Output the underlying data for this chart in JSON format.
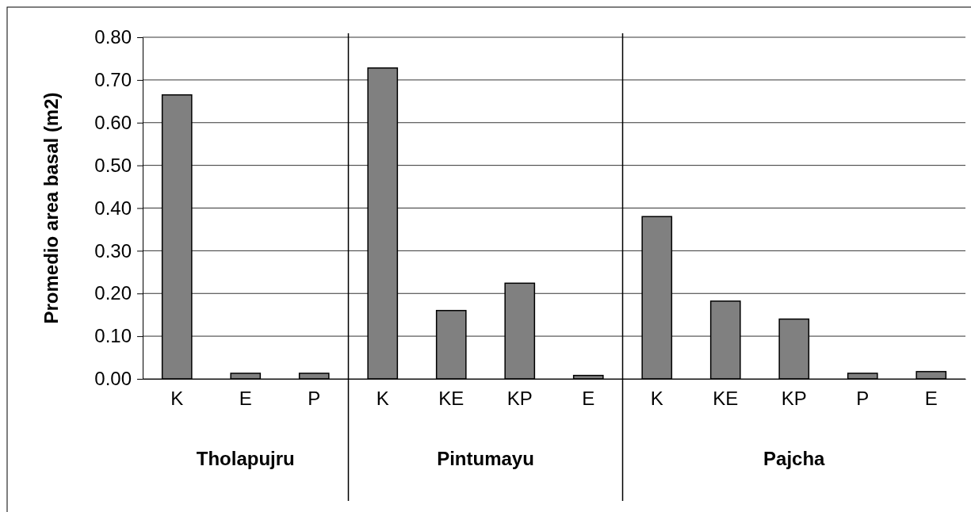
{
  "chart_data": {
    "type": "bar",
    "ylabel": "Promedio area basal (m2)",
    "categories": [
      "K",
      "E",
      "P",
      "K",
      "KE",
      "KP",
      "E",
      "K",
      "KE",
      "KP",
      "P",
      "E"
    ],
    "values": [
      0.665,
      0.013,
      0.013,
      0.728,
      0.16,
      0.224,
      0.008,
      0.38,
      0.182,
      0.14,
      0.013,
      0.017
    ],
    "color": "#808080",
    "ylim": [
      0,
      0.8
    ],
    "yticks": [
      {
        "value": 0,
        "label": "0.00"
      },
      {
        "value": 0.1,
        "label": "0.10"
      },
      {
        "value": 0.2,
        "label": "0.20"
      },
      {
        "value": 0.3,
        "label": "0.30"
      },
      {
        "value": 0.4,
        "label": "0.40"
      },
      {
        "value": 0.5,
        "label": "0.50"
      },
      {
        "value": 0.6,
        "label": "0.60"
      },
      {
        "value": 0.7,
        "label": "0.70"
      },
      {
        "value": 0.8,
        "label": "0.80"
      }
    ],
    "grid": "y",
    "annotations": [
      "Tholapujru",
      "Pintumayu",
      "Pajcha"
    ]
  }
}
